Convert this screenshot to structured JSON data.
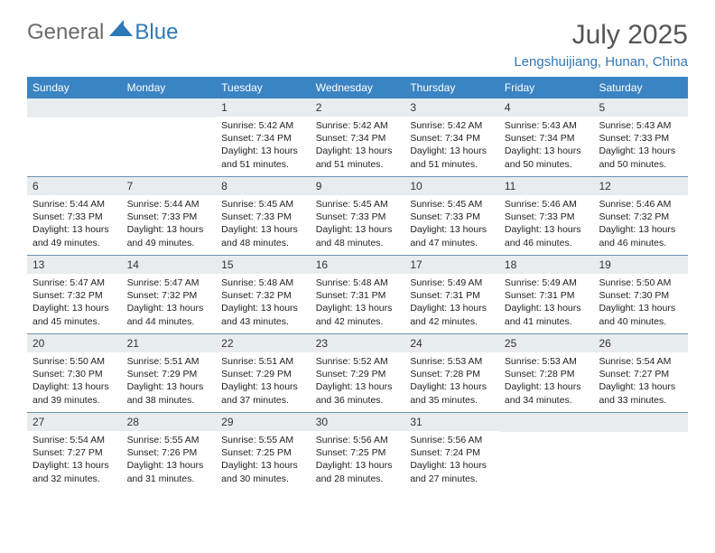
{
  "logo": {
    "text1": "General",
    "text2": "Blue"
  },
  "title": "July 2025",
  "location": "Lengshuijiang, Hunan, China",
  "colors": {
    "header_bg": "#3a84c3",
    "header_text": "#ffffff",
    "daynum_bg": "#e8ecef",
    "divider": "#6b90b0",
    "logo_gray": "#6b6b6b",
    "logo_blue": "#2f78b7",
    "title_gray": "#555555",
    "body_text": "#222222"
  },
  "dayNames": [
    "Sunday",
    "Monday",
    "Tuesday",
    "Wednesday",
    "Thursday",
    "Friday",
    "Saturday"
  ],
  "weeks": [
    [
      {
        "empty": true
      },
      {
        "empty": true
      },
      {
        "num": "1",
        "sunrise": "5:42 AM",
        "sunset": "7:34 PM",
        "daylight": "13 hours and 51 minutes."
      },
      {
        "num": "2",
        "sunrise": "5:42 AM",
        "sunset": "7:34 PM",
        "daylight": "13 hours and 51 minutes."
      },
      {
        "num": "3",
        "sunrise": "5:42 AM",
        "sunset": "7:34 PM",
        "daylight": "13 hours and 51 minutes."
      },
      {
        "num": "4",
        "sunrise": "5:43 AM",
        "sunset": "7:34 PM",
        "daylight": "13 hours and 50 minutes."
      },
      {
        "num": "5",
        "sunrise": "5:43 AM",
        "sunset": "7:33 PM",
        "daylight": "13 hours and 50 minutes."
      }
    ],
    [
      {
        "num": "6",
        "sunrise": "5:44 AM",
        "sunset": "7:33 PM",
        "daylight": "13 hours and 49 minutes."
      },
      {
        "num": "7",
        "sunrise": "5:44 AM",
        "sunset": "7:33 PM",
        "daylight": "13 hours and 49 minutes."
      },
      {
        "num": "8",
        "sunrise": "5:45 AM",
        "sunset": "7:33 PM",
        "daylight": "13 hours and 48 minutes."
      },
      {
        "num": "9",
        "sunrise": "5:45 AM",
        "sunset": "7:33 PM",
        "daylight": "13 hours and 48 minutes."
      },
      {
        "num": "10",
        "sunrise": "5:45 AM",
        "sunset": "7:33 PM",
        "daylight": "13 hours and 47 minutes."
      },
      {
        "num": "11",
        "sunrise": "5:46 AM",
        "sunset": "7:33 PM",
        "daylight": "13 hours and 46 minutes."
      },
      {
        "num": "12",
        "sunrise": "5:46 AM",
        "sunset": "7:32 PM",
        "daylight": "13 hours and 46 minutes."
      }
    ],
    [
      {
        "num": "13",
        "sunrise": "5:47 AM",
        "sunset": "7:32 PM",
        "daylight": "13 hours and 45 minutes."
      },
      {
        "num": "14",
        "sunrise": "5:47 AM",
        "sunset": "7:32 PM",
        "daylight": "13 hours and 44 minutes."
      },
      {
        "num": "15",
        "sunrise": "5:48 AM",
        "sunset": "7:32 PM",
        "daylight": "13 hours and 43 minutes."
      },
      {
        "num": "16",
        "sunrise": "5:48 AM",
        "sunset": "7:31 PM",
        "daylight": "13 hours and 42 minutes."
      },
      {
        "num": "17",
        "sunrise": "5:49 AM",
        "sunset": "7:31 PM",
        "daylight": "13 hours and 42 minutes."
      },
      {
        "num": "18",
        "sunrise": "5:49 AM",
        "sunset": "7:31 PM",
        "daylight": "13 hours and 41 minutes."
      },
      {
        "num": "19",
        "sunrise": "5:50 AM",
        "sunset": "7:30 PM",
        "daylight": "13 hours and 40 minutes."
      }
    ],
    [
      {
        "num": "20",
        "sunrise": "5:50 AM",
        "sunset": "7:30 PM",
        "daylight": "13 hours and 39 minutes."
      },
      {
        "num": "21",
        "sunrise": "5:51 AM",
        "sunset": "7:29 PM",
        "daylight": "13 hours and 38 minutes."
      },
      {
        "num": "22",
        "sunrise": "5:51 AM",
        "sunset": "7:29 PM",
        "daylight": "13 hours and 37 minutes."
      },
      {
        "num": "23",
        "sunrise": "5:52 AM",
        "sunset": "7:29 PM",
        "daylight": "13 hours and 36 minutes."
      },
      {
        "num": "24",
        "sunrise": "5:53 AM",
        "sunset": "7:28 PM",
        "daylight": "13 hours and 35 minutes."
      },
      {
        "num": "25",
        "sunrise": "5:53 AM",
        "sunset": "7:28 PM",
        "daylight": "13 hours and 34 minutes."
      },
      {
        "num": "26",
        "sunrise": "5:54 AM",
        "sunset": "7:27 PM",
        "daylight": "13 hours and 33 minutes."
      }
    ],
    [
      {
        "num": "27",
        "sunrise": "5:54 AM",
        "sunset": "7:27 PM",
        "daylight": "13 hours and 32 minutes."
      },
      {
        "num": "28",
        "sunrise": "5:55 AM",
        "sunset": "7:26 PM",
        "daylight": "13 hours and 31 minutes."
      },
      {
        "num": "29",
        "sunrise": "5:55 AM",
        "sunset": "7:25 PM",
        "daylight": "13 hours and 30 minutes."
      },
      {
        "num": "30",
        "sunrise": "5:56 AM",
        "sunset": "7:25 PM",
        "daylight": "13 hours and 28 minutes."
      },
      {
        "num": "31",
        "sunrise": "5:56 AM",
        "sunset": "7:24 PM",
        "daylight": "13 hours and 27 minutes."
      },
      {
        "empty": true
      },
      {
        "empty": true
      }
    ]
  ],
  "labels": {
    "sunrise": "Sunrise:",
    "sunset": "Sunset:",
    "daylight": "Daylight:"
  }
}
